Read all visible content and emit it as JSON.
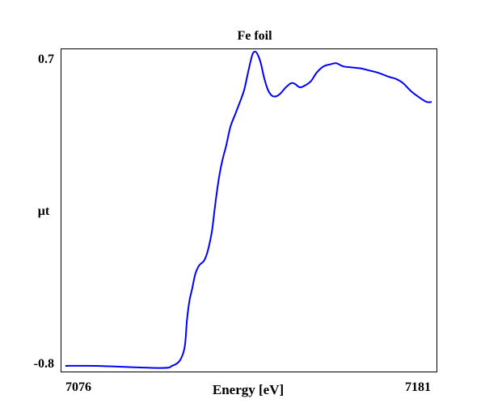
{
  "chart_data": {
    "type": "line",
    "title": "Fe foil",
    "xlabel": "Energy [eV]",
    "ylabel": "μt",
    "xlim": [
      7076,
      7181
    ],
    "ylim": [
      -0.8,
      0.7
    ],
    "x_tick_labels": [
      "7076",
      "7181"
    ],
    "y_tick_labels": [
      "0.7",
      "-0.8"
    ],
    "grid": false,
    "line_color": "#0000ff",
    "series": [
      {
        "x": [
          7076.2,
          7085.2,
          7103.5,
          7106.7,
          7108.7,
          7109.9,
          7110.5,
          7111.0,
          7111.7,
          7112.5,
          7113.4,
          7114.5,
          7115.8,
          7116.6,
          7117.4,
          7118.2,
          7119.0,
          7119.8,
          7120.6,
          7121.4,
          7122.2,
          7123.4,
          7125.0,
          7126.6,
          7127.4,
          7128.2,
          7129.0,
          7129.8,
          7130.6,
          7131.4,
          7132.2,
          7133.0,
          7134.1,
          7135.3,
          7136.5,
          7137.7,
          7139.3,
          7140.8,
          7141.9,
          7143.3,
          7144.9,
          7146.5,
          7148.1,
          7150.1,
          7152.1,
          7153.7,
          7155.7,
          7158.1,
          7160.8,
          7163.2,
          7165.6,
          7168.8,
          7170.8,
          7172.8,
          7175.2,
          7177.6,
          7179.6,
          7181.0
        ],
        "y": [
          -0.8,
          -0.8,
          -0.81,
          -0.8,
          -0.78,
          -0.74,
          -0.69,
          -0.58,
          -0.49,
          -0.43,
          -0.36,
          -0.32,
          -0.3,
          -0.27,
          -0.22,
          -0.15,
          -0.04,
          0.06,
          0.14,
          0.2,
          0.25,
          0.34,
          0.41,
          0.48,
          0.52,
          0.58,
          0.64,
          0.69,
          0.7,
          0.68,
          0.64,
          0.58,
          0.52,
          0.49,
          0.487,
          0.5,
          0.53,
          0.55,
          0.546,
          0.53,
          0.54,
          0.56,
          0.6,
          0.63,
          0.64,
          0.645,
          0.63,
          0.625,
          0.62,
          0.61,
          0.6,
          0.58,
          0.57,
          0.55,
          0.51,
          0.48,
          0.46,
          0.46
        ]
      }
    ]
  }
}
